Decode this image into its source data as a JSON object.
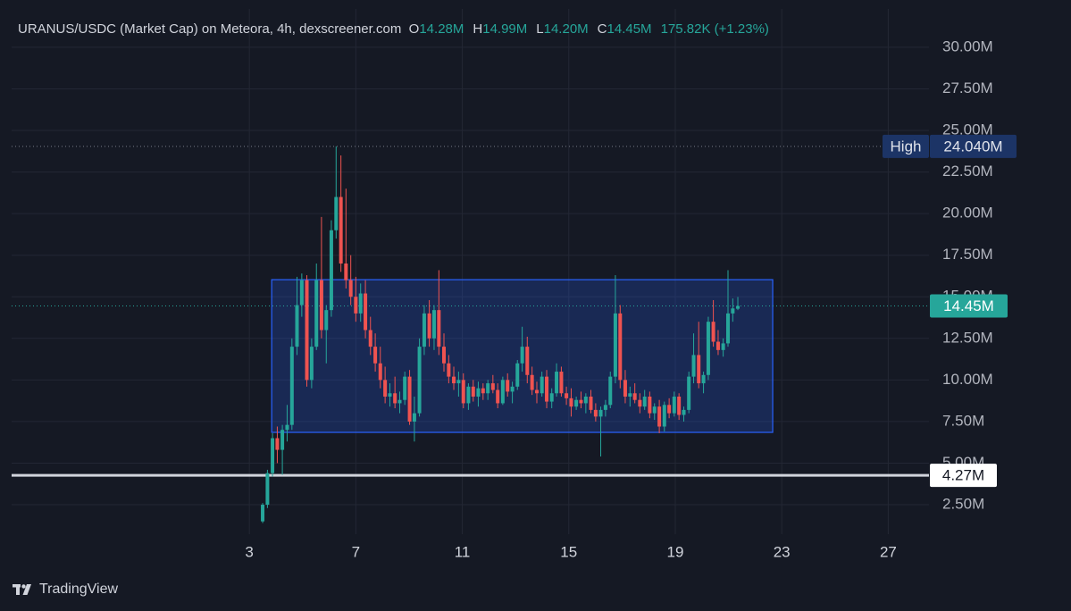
{
  "chart_data": {
    "type": "candlestick",
    "title": "URANUS/USDC (Market Cap) on Meteora, 4h, dexscreener.com",
    "ohlc_legend": [
      {
        "key": "O",
        "value": "14.28M"
      },
      {
        "key": "H",
        "value": "14.99M"
      },
      {
        "key": "L",
        "value": "14.20M"
      },
      {
        "key": "C",
        "value": "14.45M"
      }
    ],
    "change_label": "175.82K (+1.23%)",
    "up_color": "#26a69a",
    "down_color": "#ef5350",
    "x": [
      3.5,
      3.68,
      3.87,
      4.05,
      4.24,
      4.42,
      4.6,
      4.79,
      4.97,
      5.16,
      5.34,
      5.52,
      5.71,
      5.89,
      6.08,
      6.26,
      6.44,
      6.63,
      6.81,
      7.0,
      7.18,
      7.36,
      7.55,
      7.73,
      7.92,
      8.1,
      8.28,
      8.47,
      8.65,
      8.84,
      9.02,
      9.2,
      9.39,
      9.57,
      9.76,
      9.94,
      10.12,
      10.31,
      10.49,
      10.68,
      10.86,
      11.04,
      11.23,
      11.41,
      11.6,
      11.78,
      11.96,
      12.15,
      12.33,
      12.52,
      12.7,
      12.88,
      13.07,
      13.25,
      13.44,
      13.62,
      13.8,
      13.99,
      14.17,
      14.36,
      14.54,
      14.72,
      14.91,
      15.09,
      15.28,
      15.46,
      15.64,
      15.83,
      16.01,
      16.2,
      16.38,
      16.56,
      16.75,
      16.93,
      17.12,
      17.3,
      17.48,
      17.67,
      17.85,
      18.04,
      18.22,
      18.4,
      18.59,
      18.77,
      18.96,
      19.14,
      19.32,
      19.51,
      19.69,
      19.88,
      20.06,
      20.24,
      20.43,
      20.61,
      20.8,
      20.98,
      21.16,
      21.35
    ],
    "open": [
      1.5,
      2.5,
      4.4,
      6.5,
      5.8,
      7.0,
      7.3,
      12.0,
      14.5,
      16.0,
      10.0,
      12.0,
      16.0,
      13.0,
      14.2,
      19.0,
      21.0,
      17.0,
      16.0,
      15.0,
      14.0,
      15.2,
      13.0,
      12.0,
      11.0,
      10.0,
      9.0,
      9.2,
      8.6,
      8.8,
      10.2,
      7.5,
      8.0,
      12.0,
      14.0,
      12.5,
      14.2,
      12.0,
      11.0,
      10.2,
      9.8,
      10.0,
      8.6,
      9.6,
      9.0,
      9.5,
      9.2,
      9.8,
      9.4,
      8.6,
      10.0,
      9.3,
      9.6,
      11.0,
      12.0,
      10.3,
      9.4,
      9.2,
      10.2,
      8.7,
      9.2,
      10.5,
      9.2,
      8.9,
      8.4,
      8.8,
      8.6,
      9.0,
      8.2,
      7.8,
      8.2,
      8.5,
      10.2,
      14.0,
      10.0,
      9.0,
      9.2,
      8.8,
      8.4,
      9.0,
      8.0,
      8.4,
      7.2,
      8.5,
      8.0,
      9.0,
      7.9,
      8.2,
      10.2,
      11.5,
      9.8,
      10.3,
      13.5,
      12.3,
      11.8,
      12.2,
      14.0,
      14.28
    ],
    "high": [
      2.6,
      4.6,
      6.8,
      7.2,
      7.3,
      8.5,
      12.5,
      16.2,
      16.4,
      16.3,
      12.5,
      17.0,
      19.8,
      14.5,
      19.6,
      24.04,
      23.5,
      21.5,
      17.5,
      16.2,
      15.8,
      16.0,
      13.8,
      12.8,
      12.0,
      10.8,
      9.8,
      10.2,
      9.3,
      10.5,
      10.6,
      9.0,
      12.5,
      14.5,
      14.8,
      14.5,
      16.6,
      12.8,
      11.5,
      10.8,
      10.5,
      10.4,
      9.8,
      10.0,
      9.9,
      9.8,
      10.0,
      10.3,
      9.8,
      10.2,
      10.4,
      9.9,
      11.2,
      13.2,
      12.6,
      10.8,
      9.9,
      10.5,
      10.6,
      9.5,
      11.0,
      10.8,
      9.6,
      9.5,
      9.0,
      9.3,
      9.2,
      9.4,
      8.6,
      8.4,
      8.8,
      10.5,
      16.3,
      14.5,
      10.6,
      9.6,
      9.8,
      9.2,
      9.4,
      9.3,
      8.6,
      8.8,
      8.7,
      8.9,
      9.3,
      9.2,
      8.4,
      10.5,
      12.8,
      13.5,
      10.5,
      13.8,
      14.8,
      13.0,
      12.5,
      16.6,
      14.9,
      14.99
    ],
    "low": [
      1.4,
      2.3,
      4.2,
      5.0,
      4.3,
      6.3,
      7.0,
      11.5,
      13.8,
      9.6,
      9.5,
      11.8,
      12.5,
      11.0,
      13.8,
      18.5,
      16.5,
      15.5,
      14.5,
      13.5,
      13.5,
      12.5,
      11.5,
      10.5,
      9.5,
      8.6,
      8.4,
      8.3,
      8.0,
      8.5,
      7.3,
      6.3,
      7.8,
      11.5,
      12.0,
      11.8,
      11.5,
      10.5,
      9.8,
      9.4,
      9.0,
      8.3,
      8.2,
      8.7,
      8.4,
      8.8,
      8.8,
      9.2,
      8.3,
      8.5,
      9.0,
      8.6,
      9.4,
      10.5,
      9.8,
      9.1,
      8.6,
      9.0,
      8.3,
      8.3,
      9.0,
      9.0,
      8.5,
      7.8,
      8.2,
      8.3,
      8.0,
      8.0,
      7.5,
      5.4,
      7.8,
      8.3,
      9.8,
      9.5,
      8.6,
      8.4,
      8.6,
      8.0,
      8.2,
      7.7,
      7.6,
      6.8,
      6.9,
      7.7,
      7.8,
      7.6,
      7.5,
      8.0,
      9.8,
      9.5,
      9.2,
      10.0,
      12.0,
      11.5,
      11.4,
      12.0,
      13.5,
      14.2
    ],
    "close": [
      2.5,
      4.4,
      6.5,
      5.8,
      7.0,
      7.3,
      12.0,
      14.5,
      16.0,
      10.0,
      12.0,
      16.0,
      13.0,
      14.2,
      19.0,
      21.0,
      17.0,
      16.0,
      15.0,
      14.0,
      15.2,
      13.0,
      12.0,
      11.0,
      10.0,
      9.0,
      9.2,
      8.6,
      8.8,
      10.2,
      7.5,
      8.0,
      12.0,
      14.0,
      12.5,
      14.2,
      12.0,
      11.0,
      10.2,
      9.8,
      10.0,
      8.6,
      9.6,
      9.0,
      9.5,
      9.2,
      9.8,
      9.4,
      8.6,
      10.0,
      9.3,
      9.6,
      11.0,
      12.0,
      10.3,
      9.4,
      9.2,
      10.2,
      8.7,
      9.2,
      10.5,
      9.2,
      8.9,
      8.4,
      8.8,
      8.6,
      9.0,
      8.2,
      7.8,
      8.2,
      8.5,
      10.2,
      14.0,
      10.0,
      9.0,
      9.2,
      8.8,
      8.4,
      9.0,
      8.0,
      8.4,
      7.2,
      8.5,
      8.0,
      9.0,
      7.9,
      8.2,
      10.2,
      11.5,
      9.8,
      10.3,
      13.5,
      12.3,
      11.8,
      12.2,
      14.0,
      14.3,
      14.45
    ],
    "xlim": [
      -5.93,
      28.53
    ],
    "xticks": [
      3,
      7,
      11,
      15,
      19,
      23,
      27
    ],
    "ylim": [
      0.73,
      31.23
    ],
    "yticks": [
      {
        "value": 2.5,
        "label": "2.50M"
      },
      {
        "value": 5,
        "label": "5.00M"
      },
      {
        "value": 7.5,
        "label": "7.50M"
      },
      {
        "value": 10,
        "label": "10.00M"
      },
      {
        "value": 12.5,
        "label": "12.50M"
      },
      {
        "value": 15,
        "label": "15.00M"
      },
      {
        "value": 17.5,
        "label": "17.50M"
      },
      {
        "value": 20,
        "label": "20.00M"
      },
      {
        "value": 22.5,
        "label": "22.50M"
      },
      {
        "value": 25,
        "label": "25.00M"
      },
      {
        "value": 27.5,
        "label": "27.50M"
      },
      {
        "value": 30,
        "label": "30.00M"
      }
    ],
    "grid": true,
    "range_box": {
      "x": [
        3.84,
        22.66
      ],
      "y": [
        6.85,
        16.03
      ],
      "color": "#2962ff"
    },
    "high_line": {
      "name": "High",
      "value": 24.04,
      "label": "24.040M"
    },
    "last_price": {
      "value": 14.45,
      "label": "14.45M"
    },
    "level_line": {
      "value": 4.27,
      "label": "4.27M"
    }
  },
  "brand": "TradingView"
}
